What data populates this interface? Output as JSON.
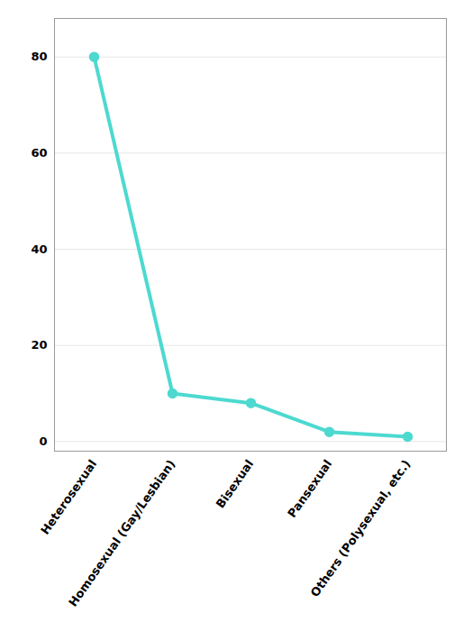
{
  "chart_data": {
    "type": "line",
    "categories": [
      "Heterosexual",
      "Homosexual (Gay/Lesbian)",
      "Bisexual",
      "Pansexual",
      "Others (Polysexual, etc.)"
    ],
    "values": [
      80,
      10,
      8,
      2,
      1
    ],
    "color": "#4DD9D0",
    "marker": "o",
    "ylim": [
      -2,
      88
    ],
    "yticks": [
      0,
      20,
      40,
      60,
      80
    ],
    "grid": true
  }
}
